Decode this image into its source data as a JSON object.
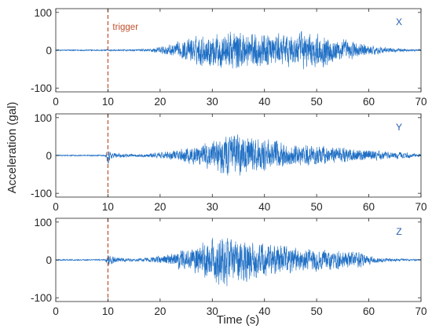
{
  "figure": {
    "ylabel": "Acceleration (gal)",
    "xlabel": "Time (s)",
    "trigger_label": "trigger",
    "colors": {
      "signal": "#1f6fc4",
      "trigger": "#c0502e",
      "axis": "#262626",
      "label": "#2a5db0"
    }
  },
  "chart_data": [
    {
      "type": "line",
      "channel": "X",
      "xlim": [
        0,
        70
      ],
      "ylim": [
        -110,
        110
      ],
      "xticks": [
        0,
        10,
        20,
        30,
        40,
        50,
        60,
        70
      ],
      "yticks": [
        -100,
        0,
        100
      ],
      "trigger_time": 10,
      "envelope": {
        "t": [
          0,
          9.5,
          10,
          10.5,
          15,
          18,
          20,
          22,
          24,
          26,
          28,
          30,
          32,
          34,
          36,
          38,
          40,
          42,
          44,
          46,
          48,
          50,
          52,
          54,
          56,
          58,
          60,
          62,
          64,
          66,
          68,
          70
        ],
        "amplitude": [
          2,
          2,
          4,
          2,
          3,
          5,
          12,
          20,
          28,
          40,
          50,
          55,
          60,
          65,
          62,
          58,
          55,
          50,
          50,
          55,
          60,
          55,
          50,
          40,
          32,
          25,
          18,
          12,
          8,
          6,
          4,
          3
        ]
      }
    },
    {
      "type": "line",
      "channel": "Y",
      "xlim": [
        0,
        70
      ],
      "ylim": [
        -110,
        110
      ],
      "xticks": [
        0,
        10,
        20,
        30,
        40,
        50,
        60,
        70
      ],
      "yticks": [
        -100,
        0,
        100
      ],
      "trigger_time": 10,
      "envelope": {
        "t": [
          0,
          9.5,
          10,
          10.5,
          12,
          15,
          18,
          20,
          22,
          24,
          26,
          28,
          30,
          32,
          34,
          36,
          38,
          40,
          42,
          44,
          46,
          48,
          50,
          52,
          54,
          56,
          58,
          60,
          62,
          64,
          66,
          68,
          70
        ],
        "amplitude": [
          2,
          2,
          30,
          12,
          8,
          4,
          6,
          10,
          15,
          20,
          30,
          40,
          50,
          60,
          70,
          62,
          55,
          50,
          45,
          40,
          38,
          35,
          32,
          30,
          28,
          25,
          20,
          18,
          15,
          12,
          10,
          8,
          6
        ]
      }
    },
    {
      "type": "line",
      "channel": "Z",
      "xlim": [
        0,
        70
      ],
      "ylim": [
        -110,
        110
      ],
      "xticks": [
        0,
        10,
        20,
        30,
        40,
        50,
        60,
        70
      ],
      "yticks": [
        -100,
        0,
        100
      ],
      "trigger_time": 10,
      "envelope": {
        "t": [
          0,
          9.5,
          10,
          10.5,
          12,
          15,
          18,
          20,
          22,
          24,
          26,
          28,
          30,
          32,
          34,
          36,
          38,
          40,
          42,
          44,
          46,
          48,
          50,
          52,
          54,
          56,
          58,
          60,
          62,
          64,
          66,
          68,
          70
        ],
        "amplitude": [
          2,
          2,
          25,
          15,
          8,
          5,
          8,
          12,
          20,
          30,
          45,
          55,
          70,
          85,
          75,
          70,
          60,
          55,
          50,
          45,
          40,
          35,
          35,
          32,
          30,
          28,
          25,
          15,
          8,
          6,
          4,
          3,
          2
        ]
      }
    }
  ]
}
